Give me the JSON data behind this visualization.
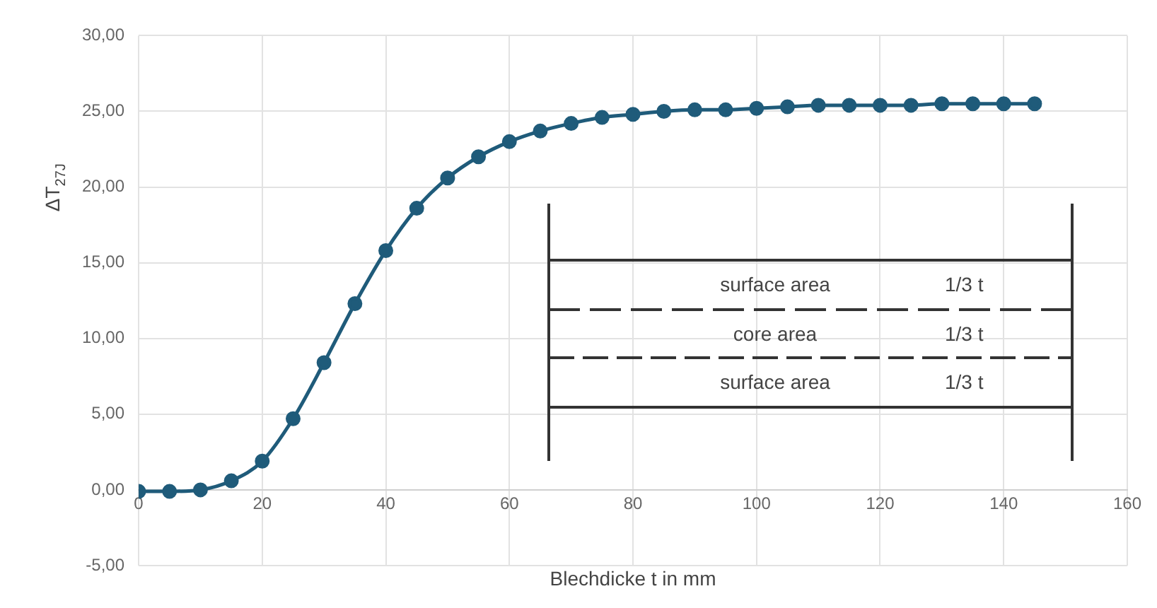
{
  "chart_data": {
    "type": "line",
    "xlabel": "Blechdicke t in mm",
    "ylabel": "ΔT$_{27J}$",
    "x": [
      0,
      5,
      10,
      15,
      20,
      25,
      30,
      35,
      40,
      45,
      50,
      55,
      60,
      65,
      70,
      75,
      80,
      85,
      90,
      95,
      100,
      105,
      110,
      115,
      120,
      125,
      130,
      135,
      140,
      145
    ],
    "series": [
      {
        "color": "#1f5b7a",
        "values": [
          -0.1,
          -0.1,
          0.0,
          0.6,
          1.9,
          4.7,
          8.4,
          12.3,
          15.8,
          18.6,
          20.6,
          22.0,
          23.0,
          23.7,
          24.2,
          24.6,
          24.8,
          25.0,
          25.1,
          25.1,
          25.2,
          25.3,
          25.4,
          25.4,
          25.4,
          25.4,
          25.5,
          25.5,
          25.5,
          25.5
        ]
      }
    ],
    "xlim": [
      0,
      160
    ],
    "xticks": [
      0,
      20,
      40,
      60,
      80,
      100,
      120,
      140,
      160
    ],
    "ylim": [
      -5,
      30
    ],
    "yticks": [
      {
        "value": -5,
        "label": "-5,00"
      },
      {
        "value": 0,
        "label": "0,00"
      },
      {
        "value": 5,
        "label": "5,00"
      },
      {
        "value": 10,
        "label": "10,00"
      },
      {
        "value": 15,
        "label": "15,00"
      },
      {
        "value": 20,
        "label": "20,00"
      },
      {
        "value": 25,
        "label": "25,00"
      },
      {
        "value": 30,
        "label": "30,00"
      }
    ],
    "grid": true,
    "legend": false,
    "marker": "circle",
    "line_style": "solid",
    "annotations": [
      "surface area",
      "1/3 t",
      "core area",
      "1/3 t",
      "surface area",
      "1/3 t"
    ]
  }
}
